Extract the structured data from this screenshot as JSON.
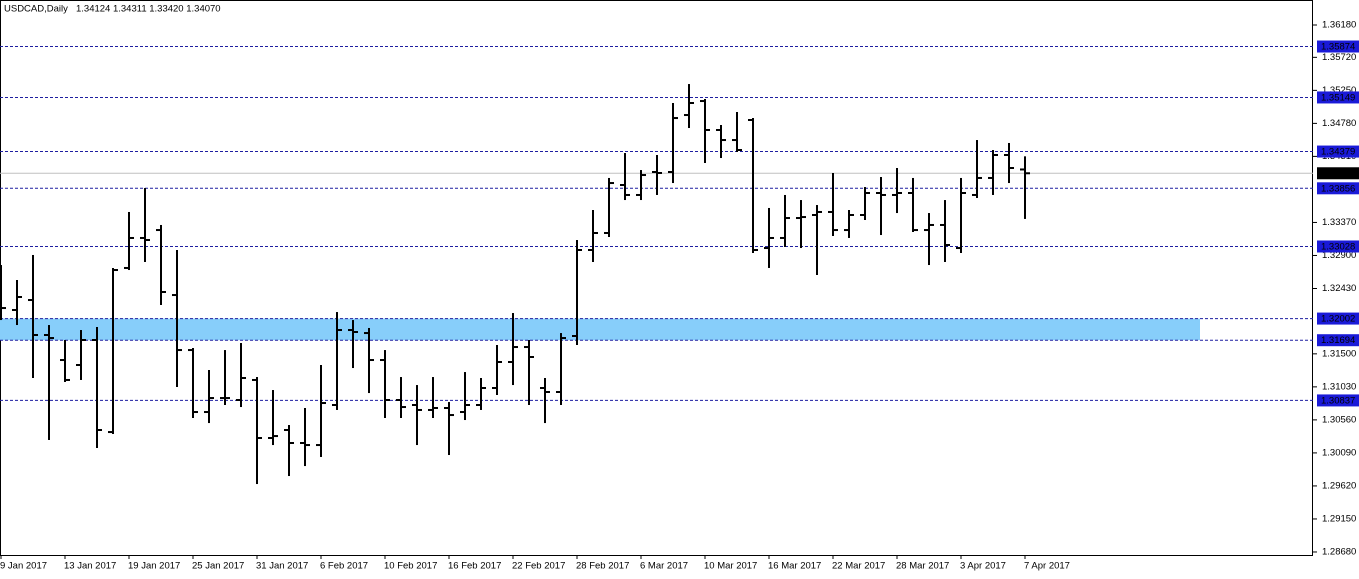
{
  "chart_data": {
    "type": "ohlc",
    "title": "USDCAD,Daily",
    "ohlc_label": "1.34124 1.34311 1.33420 1.34070",
    "color": "#000000",
    "categories": [
      "9 Jan 2017",
      null,
      null,
      null,
      "13 Jan 2017",
      null,
      null,
      null,
      "19 Jan 2017",
      null,
      null,
      null,
      "25 Jan 2017",
      null,
      null,
      null,
      "31 Jan 2017",
      null,
      null,
      null,
      "6 Feb 2017",
      null,
      null,
      null,
      "10 Feb 2017",
      null,
      null,
      null,
      "16 Feb 2017",
      null,
      null,
      null,
      "22 Feb 2017",
      null,
      null,
      null,
      "28 Feb 2017",
      null,
      null,
      null,
      "6 Mar 2017",
      null,
      null,
      null,
      "10 Mar 2017",
      null,
      null,
      null,
      "16 Mar 2017",
      null,
      null,
      null,
      "22 Mar 2017",
      null,
      null,
      null,
      "28 Mar 2017",
      null,
      null,
      null,
      "3 Apr 2017",
      null,
      null,
      null,
      "7 Apr 2017"
    ],
    "open": [
      1.32266,
      1.32124,
      1.32266,
      1.31768,
      1.31412,
      1.31341,
      1.31697,
      1.30387,
      1.32722,
      1.33149,
      1.33262,
      1.32337,
      1.31554,
      1.30672,
      1.30871,
      1.30843,
      1.31128,
      1.30302,
      1.30416,
      1.30231,
      1.30202,
      1.30772,
      1.31839,
      1.31796,
      1.31412,
      1.30843,
      1.30772,
      1.30701,
      1.30729,
      1.30672,
      1.30772,
      1.31014,
      1.31384,
      1.31597,
      1.31014,
      1.30957,
      1.31754,
      1.32978,
      1.3322,
      1.33903,
      1.33761,
      1.34088,
      1.34088,
      1.34899,
      1.35098,
      1.34686,
      1.34543,
      1.34828,
      1.33006,
      1.33149,
      1.33433,
      1.33476,
      1.33519,
      1.33262,
      1.33476,
      1.33789,
      1.33761,
      1.33789,
      1.33262,
      1.33334,
      1.33006,
      1.33761,
      1.34003,
      1.3433,
      1.34124
    ],
    "high": [
      1.32764,
      1.32551,
      1.32907,
      1.3191,
      1.31697,
      1.31839,
      1.31882,
      1.32722,
      1.33519,
      1.3386,
      1.33334,
      1.32978,
      1.31583,
      1.3127,
      1.31554,
      1.31654,
      1.3117,
      1.30985,
      1.30487,
      1.30729,
      1.31341,
      1.32095,
      1.31981,
      1.31868,
      1.31554,
      1.3117,
      1.31056,
      1.3117,
      1.30814,
      1.31241,
      1.31156,
      1.31626,
      1.32081,
      1.31697,
      1.31156,
      1.31796,
      1.3312,
      1.33547,
      1.34003,
      1.34358,
      1.34116,
      1.3433,
      1.3507,
      1.3534,
      1.35127,
      1.34757,
      1.34942,
      1.34856,
      1.33576,
      1.33761,
      1.33689,
      1.33618,
      1.34074,
      1.33547,
      1.33874,
      1.34017,
      1.34145,
      1.34003,
      1.33504,
      1.33689,
      1.34003,
      1.34543,
      1.34401,
      1.34501,
      1.34311
    ],
    "low": [
      1.31981,
      1.3191,
      1.31156,
      1.30274,
      1.31099,
      1.31128,
      1.3016,
      1.30359,
      1.32693,
      1.32807,
      1.32195,
      1.31028,
      1.30587,
      1.30515,
      1.30772,
      1.30743,
      1.29647,
      1.30202,
      1.29761,
      1.29903,
      1.30032,
      1.30701,
      1.31298,
      1.30942,
      1.30587,
      1.30587,
      1.30202,
      1.30587,
      1.3006,
      1.30558,
      1.30701,
      1.30914,
      1.31056,
      1.30772,
      1.30515,
      1.30772,
      1.31626,
      1.32807,
      1.33163,
      1.33689,
      1.33689,
      1.33761,
      1.33931,
      1.34714,
      1.34216,
      1.34287,
      1.34373,
      1.32935,
      1.32722,
      1.33021,
      1.33006,
      1.32622,
      1.33177,
      1.33149,
      1.33405,
      1.33191,
      1.33504,
      1.33234,
      1.32764,
      1.32807,
      1.32935,
      1.33718,
      1.33761,
      1.33931,
      1.3342
    ],
    "close": [
      1.32152,
      1.32309,
      1.31768,
      1.31725,
      1.31128,
      1.31697,
      1.30416,
      1.32693,
      1.33149,
      1.3312,
      1.3238,
      1.31554,
      1.30672,
      1.30871,
      1.30871,
      1.31156,
      1.30302,
      1.3033,
      1.30231,
      1.30202,
      1.308,
      1.31839,
      1.31811,
      1.31412,
      1.30843,
      1.30743,
      1.30701,
      1.30729,
      1.30629,
      1.30772,
      1.31014,
      1.31384,
      1.31597,
      1.31455,
      1.30957,
      1.31725,
      1.32978,
      1.3322,
      1.33931,
      1.33761,
      1.34045,
      1.34074,
      1.34856,
      1.3507,
      1.34686,
      1.34543,
      1.34401,
      1.32978,
      1.33149,
      1.33433,
      1.33447,
      1.33519,
      1.33262,
      1.33476,
      1.33789,
      1.33761,
      1.33789,
      1.33262,
      1.33334,
      1.33049,
      1.33789,
      1.34003,
      1.3433,
      1.34145,
      1.3407
    ],
    "ylim": [
      1.28637,
      1.36536
    ],
    "yticks": [
      {
        "value": 1.3618,
        "label": "1.36180"
      },
      {
        "value": 1.3572,
        "label": "1.35720"
      },
      {
        "value": 1.3525,
        "label": "1.35250"
      },
      {
        "value": 1.3478,
        "label": "1.34780"
      },
      {
        "value": 1.3431,
        "label": "1.34310"
      },
      {
        "value": 1.3337,
        "label": "1.33370"
      },
      {
        "value": 1.329,
        "label": "1.32900"
      },
      {
        "value": 1.3243,
        "label": "1.32430"
      },
      {
        "value": 1.315,
        "label": "1.31500"
      },
      {
        "value": 1.3103,
        "label": "1.31030"
      },
      {
        "value": 1.3056,
        "label": "1.30560"
      },
      {
        "value": 1.3009,
        "label": "1.30090"
      },
      {
        "value": 1.2962,
        "label": "1.29620"
      },
      {
        "value": 1.2915,
        "label": "1.29150"
      },
      {
        "value": 1.2868,
        "label": "1.28680"
      }
    ],
    "levels": [
      1.35874,
      1.35149,
      1.34379,
      1.33856,
      1.33028,
      1.32002,
      1.31694,
      1.30837
    ],
    "level_color": "#1e1ea0",
    "level_label_color": "#1a1ad8",
    "current_price": {
      "value": 1.3407,
      "label": "1.34070"
    },
    "current_color": "#c0c0c0",
    "zone": {
      "from": 1.32002,
      "to": 1.31694,
      "color": "#87cefa"
    }
  }
}
